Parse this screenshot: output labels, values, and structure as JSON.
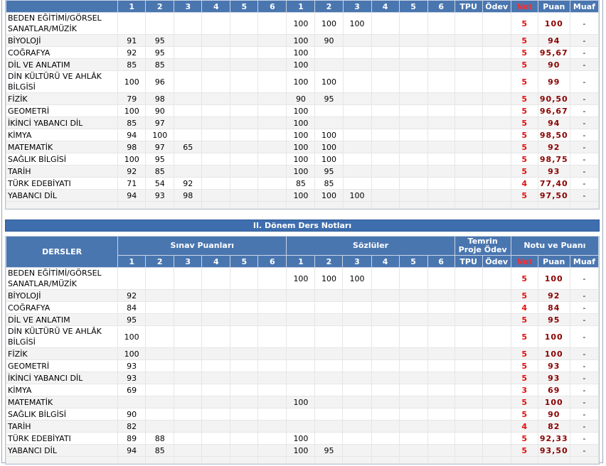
{
  "semester1": {
    "subheaders": [
      1,
      2,
      3,
      4,
      5,
      6,
      1,
      2,
      3,
      4,
      5,
      6,
      "TPU",
      "Ödev",
      "Not",
      "Puan",
      "Muaf"
    ],
    "rows": [
      [
        "BEDEN EĞİTİMİ/GÖRSEL SANATLAR/MÜZİK",
        null,
        null,
        null,
        null,
        null,
        null,
        100,
        100,
        100,
        null,
        null,
        null,
        null,
        null,
        5,
        100,
        "-"
      ],
      [
        "BİYOLOJİ",
        91,
        95,
        null,
        null,
        null,
        null,
        100,
        90,
        null,
        null,
        null,
        null,
        null,
        null,
        5,
        94,
        "-"
      ],
      [
        "COĞRAFYA",
        92,
        95,
        null,
        null,
        null,
        null,
        100,
        null,
        null,
        null,
        null,
        null,
        null,
        null,
        5,
        "95,67",
        "-"
      ],
      [
        "DİL VE ANLATIM",
        85,
        85,
        null,
        null,
        null,
        null,
        100,
        null,
        null,
        null,
        null,
        null,
        null,
        null,
        5,
        90,
        "-"
      ],
      [
        "DİN KÜLTÜRÜ VE AHLÂK BİLGİSİ",
        100,
        96,
        null,
        null,
        null,
        null,
        100,
        100,
        null,
        null,
        null,
        null,
        null,
        null,
        5,
        99,
        "-"
      ],
      [
        "FİZİK",
        79,
        98,
        null,
        null,
        null,
        null,
        90,
        95,
        null,
        null,
        null,
        null,
        null,
        null,
        5,
        "90,50",
        "-"
      ],
      [
        "GEOMETRİ",
        100,
        90,
        null,
        null,
        null,
        null,
        100,
        null,
        null,
        null,
        null,
        null,
        null,
        null,
        5,
        "96,67",
        "-"
      ],
      [
        "İKİNCİ YABANCI DİL",
        85,
        97,
        null,
        null,
        null,
        null,
        100,
        null,
        null,
        null,
        null,
        null,
        null,
        null,
        5,
        94,
        "-"
      ],
      [
        "KİMYA",
        94,
        100,
        null,
        null,
        null,
        null,
        100,
        100,
        null,
        null,
        null,
        null,
        null,
        null,
        5,
        "98,50",
        "-"
      ],
      [
        "MATEMATİK",
        98,
        97,
        65,
        null,
        null,
        null,
        100,
        100,
        null,
        null,
        null,
        null,
        null,
        null,
        5,
        92,
        "-"
      ],
      [
        "SAĞLIK BİLGİSİ",
        100,
        95,
        null,
        null,
        null,
        null,
        100,
        100,
        null,
        null,
        null,
        null,
        null,
        null,
        5,
        "98,75",
        "-"
      ],
      [
        "TARİH",
        92,
        85,
        null,
        null,
        null,
        null,
        100,
        95,
        null,
        null,
        null,
        null,
        null,
        null,
        5,
        93,
        "-"
      ],
      [
        "TÜRK EDEBİYATI",
        71,
        54,
        92,
        null,
        null,
        null,
        85,
        85,
        null,
        null,
        null,
        null,
        null,
        null,
        4,
        "77,40",
        "-"
      ],
      [
        "YABANCI DİL",
        94,
        93,
        98,
        null,
        null,
        null,
        100,
        100,
        100,
        null,
        null,
        null,
        null,
        null,
        5,
        "97,50",
        "-"
      ]
    ]
  },
  "semester2": {
    "title": "II. Dönem Ders Notları",
    "headers": [
      "DERSLER",
      "Sınav Puanları",
      "Sözlüler",
      "Temrin Proje Ödev",
      "Notu ve Puanı"
    ],
    "subheaders": [
      1,
      2,
      3,
      4,
      5,
      6,
      1,
      2,
      3,
      4,
      5,
      6,
      "TPU",
      "Ödev",
      "Not",
      "Puan",
      "Muaf"
    ],
    "rows": [
      [
        "BEDEN EĞİTİMİ/GÖRSEL SANATLAR/MÜZİK",
        null,
        null,
        null,
        null,
        null,
        null,
        100,
        100,
        100,
        null,
        null,
        null,
        null,
        null,
        5,
        100,
        "-"
      ],
      [
        "BİYOLOJİ",
        92,
        null,
        null,
        null,
        null,
        null,
        null,
        null,
        null,
        null,
        null,
        null,
        null,
        null,
        5,
        92,
        "-"
      ],
      [
        "COĞRAFYA",
        84,
        null,
        null,
        null,
        null,
        null,
        null,
        null,
        null,
        null,
        null,
        null,
        null,
        null,
        4,
        84,
        "-"
      ],
      [
        "DİL VE ANLATIM",
        95,
        null,
        null,
        null,
        null,
        null,
        null,
        null,
        null,
        null,
        null,
        null,
        null,
        null,
        5,
        95,
        "-"
      ],
      [
        "DİN KÜLTÜRÜ VE AHLÂK BİLGİSİ",
        100,
        null,
        null,
        null,
        null,
        null,
        null,
        null,
        null,
        null,
        null,
        null,
        null,
        null,
        5,
        100,
        "-"
      ],
      [
        "FİZİK",
        100,
        null,
        null,
        null,
        null,
        null,
        null,
        null,
        null,
        null,
        null,
        null,
        null,
        null,
        5,
        100,
        "-"
      ],
      [
        "GEOMETRİ",
        93,
        null,
        null,
        null,
        null,
        null,
        null,
        null,
        null,
        null,
        null,
        null,
        null,
        null,
        5,
        93,
        "-"
      ],
      [
        "İKİNCİ YABANCI DİL",
        93,
        null,
        null,
        null,
        null,
        null,
        null,
        null,
        null,
        null,
        null,
        null,
        null,
        null,
        5,
        93,
        "-"
      ],
      [
        "KİMYA",
        69,
        null,
        null,
        null,
        null,
        null,
        null,
        null,
        null,
        null,
        null,
        null,
        null,
        null,
        3,
        69,
        "-"
      ],
      [
        "MATEMATİK",
        null,
        null,
        null,
        null,
        null,
        null,
        100,
        null,
        null,
        null,
        null,
        null,
        null,
        null,
        5,
        100,
        "-"
      ],
      [
        "SAĞLIK BİLGİSİ",
        90,
        null,
        null,
        null,
        null,
        null,
        null,
        null,
        null,
        null,
        null,
        null,
        null,
        null,
        5,
        90,
        "-"
      ],
      [
        "TARİH",
        82,
        null,
        null,
        null,
        null,
        null,
        null,
        null,
        null,
        null,
        null,
        null,
        null,
        null,
        4,
        82,
        "-"
      ],
      [
        "TÜRK EDEBİYATI",
        89,
        88,
        null,
        null,
        null,
        null,
        100,
        null,
        null,
        null,
        null,
        null,
        null,
        null,
        5,
        "92,33",
        "-"
      ],
      [
        "YABANCI DİL",
        94,
        85,
        null,
        null,
        null,
        null,
        100,
        95,
        null,
        null,
        null,
        null,
        null,
        null,
        5,
        "93,50",
        "-"
      ]
    ]
  }
}
